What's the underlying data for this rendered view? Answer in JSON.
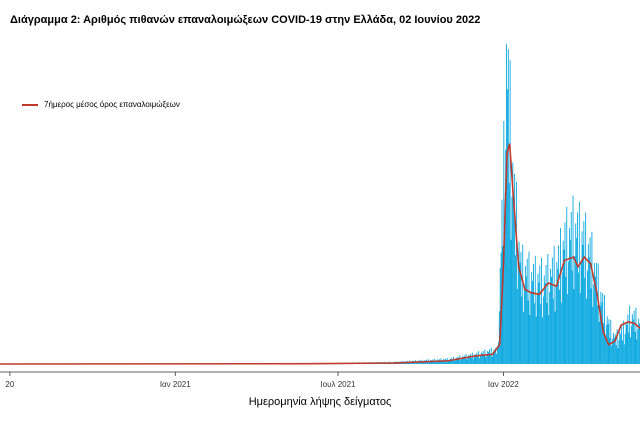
{
  "chart_data": {
    "type": "bar",
    "title": "Διάγραμμα 2: Αριθμός πιθανών επαναλοιμώξεων COVID-19 στην Ελλάδα, 02 Ιουνίου 2022",
    "xlabel": "Ημερομηνία λήψης δείγματος",
    "ylabel": "",
    "grid": false,
    "legend_position": "top-left",
    "colors": {
      "bars": "#0aa8e0",
      "line": "#c0392b"
    },
    "x_ticks": [
      {
        "date": "2020-07-01",
        "label": "20"
      },
      {
        "date": "2021-01-01",
        "label": "Ιαν 2021"
      },
      {
        "date": "2021-07-01",
        "label": "Ιουλ 2021"
      },
      {
        "date": "2022-01-01",
        "label": "Ιαν 2022"
      },
      {
        "date": "2022-07-01",
        "label": ""
      }
    ],
    "x_range": [
      "2020-06-20",
      "2022-06-02"
    ],
    "ylim": [
      0,
      1000
    ],
    "series": [
      {
        "kind": "bars",
        "points": [
          [
            "2020-06-20",
            0
          ],
          [
            "2021-06-01",
            2
          ],
          [
            "2021-09-01",
            6
          ],
          [
            "2021-11-01",
            15
          ],
          [
            "2021-12-01",
            30
          ],
          [
            "2021-12-25",
            45
          ],
          [
            "2022-01-01",
            600
          ],
          [
            "2022-01-04",
            940
          ],
          [
            "2022-01-08",
            750
          ],
          [
            "2022-01-12",
            540
          ],
          [
            "2022-01-20",
            300
          ],
          [
            "2022-02-01",
            270
          ],
          [
            "2022-02-15",
            260
          ],
          [
            "2022-03-01",
            300
          ],
          [
            "2022-03-10",
            380
          ],
          [
            "2022-03-20",
            420
          ],
          [
            "2022-04-01",
            380
          ],
          [
            "2022-04-10",
            320
          ],
          [
            "2022-04-20",
            200
          ],
          [
            "2022-04-28",
            120
          ],
          [
            "2022-05-05",
            80
          ],
          [
            "2022-05-15",
            110
          ],
          [
            "2022-05-22",
            150
          ],
          [
            "2022-06-02",
            130
          ]
        ]
      },
      {
        "name": "7ήμερος μέσος όρος επαναλοιμώξεων",
        "kind": "line",
        "points": [
          [
            "2020-06-20",
            0
          ],
          [
            "2021-06-01",
            1
          ],
          [
            "2021-09-01",
            3
          ],
          [
            "2021-11-01",
            10
          ],
          [
            "2021-12-01",
            25
          ],
          [
            "2021-12-20",
            30
          ],
          [
            "2021-12-28",
            60
          ],
          [
            "2022-01-01",
            300
          ],
          [
            "2022-01-05",
            650
          ],
          [
            "2022-01-08",
            680
          ],
          [
            "2022-01-12",
            520
          ],
          [
            "2022-01-18",
            300
          ],
          [
            "2022-01-25",
            230
          ],
          [
            "2022-02-01",
            220
          ],
          [
            "2022-02-10",
            215
          ],
          [
            "2022-02-20",
            250
          ],
          [
            "2022-03-01",
            240
          ],
          [
            "2022-03-10",
            320
          ],
          [
            "2022-03-20",
            330
          ],
          [
            "2022-03-25",
            300
          ],
          [
            "2022-04-01",
            330
          ],
          [
            "2022-04-08",
            310
          ],
          [
            "2022-04-15",
            220
          ],
          [
            "2022-04-22",
            100
          ],
          [
            "2022-04-28",
            60
          ],
          [
            "2022-05-05",
            70
          ],
          [
            "2022-05-12",
            120
          ],
          [
            "2022-05-20",
            130
          ],
          [
            "2022-05-27",
            125
          ],
          [
            "2022-06-02",
            110
          ]
        ]
      }
    ]
  }
}
